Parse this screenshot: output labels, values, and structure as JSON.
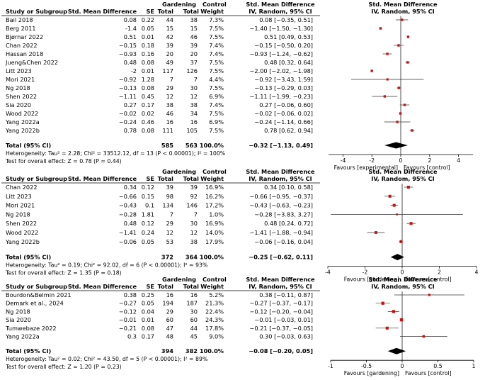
{
  "chart_data": [
    {
      "type": "forest",
      "title": "Std. Mean Difference IV, Random, 95% CI",
      "headers": {
        "study": "Study or Subgroup",
        "smd": "Std. Mean Difference",
        "se": "SE",
        "group1": "Gardening",
        "group2": "Control",
        "total": "Total",
        "weight": "Weight",
        "ci_title": "Std. Mean Difference",
        "ci_sub": "IV, Random, 95% CI",
        "plot_title": "Std. Mean Difference",
        "plot_sub": "IV, Random, 95% CI"
      },
      "studies": [
        {
          "name": "Bail 2018",
          "smd": "0.08",
          "se": "0.22",
          "g": "44",
          "c": "38",
          "w": "7.3%",
          "ci": "0.08 [−0.35, 0.51]",
          "est": 0.08,
          "lo": -0.35,
          "hi": 0.51,
          "wt": 7.3
        },
        {
          "name": "Berg 2011",
          "smd": "-1.4",
          "se": "0.05",
          "g": "15",
          "c": "15",
          "w": "7.5%",
          "ci": "−1.40 [−1.50, −1.30]",
          "est": -1.4,
          "lo": -1.5,
          "hi": -1.3,
          "wt": 7.5
        },
        {
          "name": "Bjørnar 2022",
          "smd": "0.51",
          "se": "0.01",
          "g": "42",
          "c": "46",
          "w": "7.5%",
          "ci": "0.51 [0.49, 0.53]",
          "est": 0.51,
          "lo": 0.49,
          "hi": 0.53,
          "wt": 7.5
        },
        {
          "name": "Chan 2022",
          "smd": "−0.15",
          "se": "0.18",
          "g": "39",
          "c": "39",
          "w": "7.4%",
          "ci": "−0.15 [−0.50, 0.20]",
          "est": -0.15,
          "lo": -0.5,
          "hi": 0.2,
          "wt": 7.4
        },
        {
          "name": "Hassan 2018",
          "smd": "−0.93",
          "se": "0.16",
          "g": "20",
          "c": "20",
          "w": "7.4%",
          "ci": "−0.93 [−1.24, −0.62]",
          "est": -0.93,
          "lo": -1.24,
          "hi": -0.62,
          "wt": 7.4
        },
        {
          "name": "Jueng&Chen 2022",
          "smd": "0.48",
          "se": "0.08",
          "g": "49",
          "c": "37",
          "w": "7.5%",
          "ci": "0.48 [0.32, 0.64]",
          "est": 0.48,
          "lo": 0.32,
          "hi": 0.64,
          "wt": 7.5
        },
        {
          "name": "Litt 2023",
          "smd": "-2",
          "se": "0.01",
          "g": "117",
          "c": "126",
          "w": "7.5%",
          "ci": "−2.00 [−2.02, −1.98]",
          "est": -2.0,
          "lo": -2.02,
          "hi": -1.98,
          "wt": 7.5
        },
        {
          "name": "Mori 2021",
          "smd": "−0.92",
          "se": "1.28",
          "g": "7",
          "c": "7",
          "w": "4.4%",
          "ci": "−0.92 [−3.43, 1.59]",
          "est": -0.92,
          "lo": -3.43,
          "hi": 1.59,
          "wt": 4.4
        },
        {
          "name": "Ng 2018",
          "smd": "−0.13",
          "se": "0.08",
          "g": "29",
          "c": "30",
          "w": "7.5%",
          "ci": "−0.13 [−0.29, 0.03]",
          "est": -0.13,
          "lo": -0.29,
          "hi": 0.03,
          "wt": 7.5
        },
        {
          "name": "Shen 2022",
          "smd": "−1.11",
          "se": "0.45",
          "g": "12",
          "c": "12",
          "w": "6.9%",
          "ci": "−1.11 [−1.99, −0.23]",
          "est": -1.11,
          "lo": -1.99,
          "hi": -0.23,
          "wt": 6.9
        },
        {
          "name": "Sia 2020",
          "smd": "0.27",
          "se": "0.17",
          "g": "38",
          "c": "38",
          "w": "7.4%",
          "ci": "0.27 [−0.06, 0.60]",
          "est": 0.27,
          "lo": -0.06,
          "hi": 0.6,
          "wt": 7.4
        },
        {
          "name": "Wood 2022",
          "smd": "−0.02",
          "se": "0.02",
          "g": "46",
          "c": "34",
          "w": "7.5%",
          "ci": "−0.02 [−0.06, 0.02]",
          "est": -0.02,
          "lo": -0.06,
          "hi": 0.02,
          "wt": 7.5
        },
        {
          "name": "Yang 2022a",
          "smd": "−0.24",
          "se": "0.46",
          "g": "16",
          "c": "16",
          "w": "6.9%",
          "ci": "−0.24 [−1.14, 0.66]",
          "est": -0.24,
          "lo": -1.14,
          "hi": 0.66,
          "wt": 6.9
        },
        {
          "name": "Yang 2022b",
          "smd": "0.78",
          "se": "0.08",
          "g": "111",
          "c": "105",
          "w": "7.5%",
          "ci": "0.78 [0.62, 0.94]",
          "est": 0.78,
          "lo": 0.62,
          "hi": 0.94,
          "wt": 7.5
        }
      ],
      "total": {
        "label": "Total (95% CI)",
        "g": "585",
        "c": "563",
        "w": "100.0%",
        "ci": "−0.32 [−1.13, 0.49]",
        "est": -0.32,
        "lo": -1.13,
        "hi": 0.49
      },
      "heterogeneity": "Heterogeneity: Tau² = 2.28; Chi² = 33512.12, df = 13 (P < 0.00001); I² = 100%",
      "overall": "Test for overall effect: Z = 0.78 (P = 0.44)",
      "xlim": [
        -5,
        5
      ],
      "ticks": [
        -4,
        -2,
        0,
        2,
        4
      ],
      "favours_left": "Favours [experimental]",
      "favours_right": "Favours [control]"
    },
    {
      "type": "forest",
      "headers": {
        "study": "Study or Subgroup",
        "smd": "Std. Mean Difference",
        "se": "SE",
        "group1": "Gardening",
        "group2": "Control",
        "total": "Total",
        "weight": "Weight",
        "ci_title": "Std. Mean Difference",
        "ci_sub": "IV, Random, 95% CI",
        "plot_title": "Std. Mean Difference",
        "plot_sub": "IV, Random, 95% CI"
      },
      "studies": [
        {
          "name": "Chan 2022",
          "smd": "0.34",
          "se": "0.12",
          "g": "39",
          "c": "39",
          "w": "16.9%",
          "ci": "0.34 [0.10, 0.58]",
          "est": 0.34,
          "lo": 0.1,
          "hi": 0.58,
          "wt": 16.9
        },
        {
          "name": "Litt 2023",
          "smd": "−0.66",
          "se": "0.15",
          "g": "98",
          "c": "92",
          "w": "16.2%",
          "ci": "−0.66 [−0.95, −0.37]",
          "est": -0.66,
          "lo": -0.95,
          "hi": -0.37,
          "wt": 16.2
        },
        {
          "name": "Mori 2021",
          "smd": "−0.43",
          "se": "0.1",
          "g": "134",
          "c": "146",
          "w": "17.2%",
          "ci": "−0.43 [−0.63, −0.23]",
          "est": -0.43,
          "lo": -0.63,
          "hi": -0.23,
          "wt": 17.2
        },
        {
          "name": "Ng 2018",
          "smd": "−0.28",
          "se": "1.81",
          "g": "7",
          "c": "7",
          "w": "1.0%",
          "ci": "−0.28 [−3.83, 3.27]",
          "est": -0.28,
          "lo": -3.83,
          "hi": 3.27,
          "wt": 1.0
        },
        {
          "name": "Shen 2022",
          "smd": "0.48",
          "se": "0.12",
          "g": "29",
          "c": "30",
          "w": "16.9%",
          "ci": "0.48 [0.24, 0.72]",
          "est": 0.48,
          "lo": 0.24,
          "hi": 0.72,
          "wt": 16.9
        },
        {
          "name": "Wood 2022",
          "smd": "−1.41",
          "se": "0.24",
          "g": "12",
          "c": "12",
          "w": "14.0%",
          "ci": "−1.41 [−1.88, −0.94]",
          "est": -1.41,
          "lo": -1.88,
          "hi": -0.94,
          "wt": 14.0
        },
        {
          "name": "Yang 2022b",
          "smd": "−0.06",
          "se": "0.05",
          "g": "53",
          "c": "38",
          "w": "17.9%",
          "ci": "−0.06 [−0.16, 0.04]",
          "est": -0.06,
          "lo": -0.16,
          "hi": 0.04,
          "wt": 17.9
        }
      ],
      "total": {
        "label": "Total (95% CI)",
        "g": "372",
        "c": "364",
        "w": "100.0%",
        "ci": "−0.25 [−0.62, 0.11]",
        "est": -0.25,
        "lo": -0.62,
        "hi": 0.11
      },
      "heterogeneity": "Heterogeneity: Tau² = 0.19; Chi² = 92.02, df = 6 (P < 0.00001); I² = 93%",
      "overall": "Test for overall effect: Z = 1.35 (P = 0.18)",
      "xlim": [
        -4,
        4
      ],
      "ticks": [
        -4,
        -2,
        0,
        2,
        4
      ],
      "favours_left": "Favours [gardening]",
      "favours_right": "Favours [control]"
    },
    {
      "type": "forest",
      "headers": {
        "study": "Study or Subgroup",
        "smd": "Std. Mean Difference",
        "se": "SE",
        "group1": "Gardening",
        "group2": "Control",
        "total": "Total",
        "weight": "Weight",
        "ci_title": "Std. Mean Difference",
        "ci_sub": "IV, Random, 95% CI",
        "plot_title": "Std. Mean Difference",
        "plot_sub": "IV, Random, 95% CI"
      },
      "studies": [
        {
          "name": "Bourdon&Belmin 2021",
          "smd": "0.38",
          "se": "0.25",
          "g": "16",
          "c": "16",
          "w": "5.2%",
          "ci": "0.38 [−0.11, 0.87]",
          "est": 0.38,
          "lo": -0.11,
          "hi": 0.87,
          "wt": 5.2
        },
        {
          "name": "Demark et al., 2024",
          "smd": "−0.27",
          "se": "0.05",
          "g": "194",
          "c": "187",
          "w": "21.3%",
          "ci": "−0.27 [−0.37, −0.17]",
          "est": -0.27,
          "lo": -0.37,
          "hi": -0.17,
          "wt": 21.3
        },
        {
          "name": "Ng 2018",
          "smd": "−0.12",
          "se": "0.04",
          "g": "29",
          "c": "30",
          "w": "22.4%",
          "ci": "−0.12 [−0.20, −0.04]",
          "est": -0.12,
          "lo": -0.2,
          "hi": -0.04,
          "wt": 22.4
        },
        {
          "name": "Sia 2020",
          "smd": "−0.01",
          "se": "0.01",
          "g": "60",
          "c": "60",
          "w": "24.3%",
          "ci": "−0.01 [−0.03, 0.01]",
          "est": -0.01,
          "lo": -0.03,
          "hi": 0.01,
          "wt": 24.3
        },
        {
          "name": "Tumwebaze 2022",
          "smd": "−0.21",
          "se": "0.08",
          "g": "47",
          "c": "44",
          "w": "17.8%",
          "ci": "−0.21 [−0.37, −0.05]",
          "est": -0.21,
          "lo": -0.37,
          "hi": -0.05,
          "wt": 17.8
        },
        {
          "name": "Yang 2022a",
          "smd": "0.3",
          "se": "0.17",
          "g": "48",
          "c": "45",
          "w": "9.0%",
          "ci": "0.30 [−0.03, 0.63]",
          "est": 0.3,
          "lo": -0.03,
          "hi": 0.63,
          "wt": 9.0
        }
      ],
      "total": {
        "label": "Total (95% CI)",
        "g": "394",
        "c": "382",
        "w": "100.0%",
        "ci": "−0.08 [−0.20, 0.05]",
        "est": -0.08,
        "lo": -0.2,
        "hi": 0.05
      },
      "heterogeneity": "Heterogeneity: Tau² = 0.02; Chi² = 43.50, df = 5 (P < 0.00001); I² = 89%",
      "overall": "Test for overall effect: Z = 1.20 (P = 0.23)",
      "xlim": [
        -1,
        1
      ],
      "ticks": [
        -1,
        -0.5,
        0,
        0.5,
        1
      ],
      "favours_left": "Favours [gardening]",
      "favours_right": "Favours [control]"
    }
  ],
  "colors": {
    "square": "#cc1111",
    "diamond": "#000000",
    "text": "#000000",
    "ci_line": "#333333"
  }
}
